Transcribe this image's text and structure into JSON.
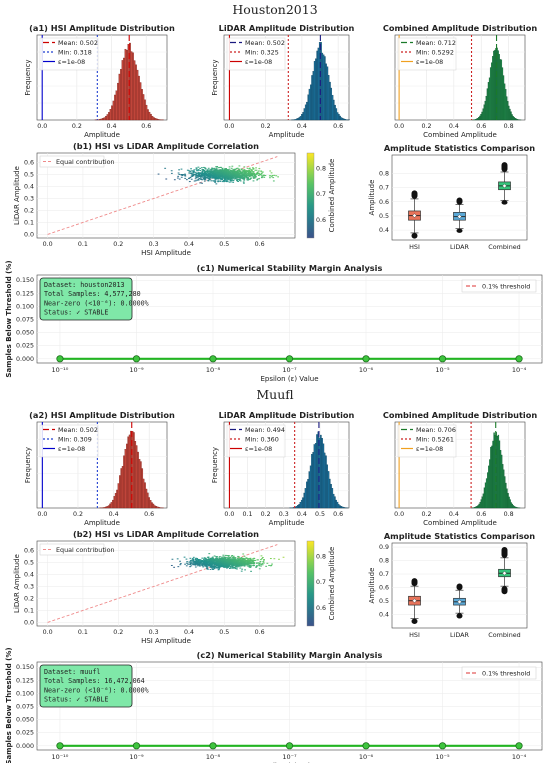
{
  "sections": [
    {
      "heading": "Houston2013",
      "hist": [
        {
          "title": "(a1) HSI Amplitude Distribution",
          "xlabel": "Amplitude",
          "ylabel": "Frequency",
          "color": "#c0453a",
          "edge": "#7a2019",
          "xlim": [
            -0.03,
            0.72
          ],
          "xticks": [
            0.0,
            0.2,
            0.4,
            0.6
          ],
          "center": 0.502,
          "spread": 0.055,
          "mean": 0.502,
          "min": 0.318,
          "eps": 1e-08,
          "legend": [
            "Mean: 0.502",
            "Min: 0.318",
            "ε=1e-08"
          ],
          "styles": [
            {
              "color": "#cc0000",
              "dash": "6,3"
            },
            {
              "color": "#1f3fd0",
              "dash": "2,2"
            },
            {
              "color": "#0000cc",
              "dash": ""
            }
          ]
        },
        {
          "title": "LiDAR Amplitude Distribution",
          "xlabel": "Amplitude",
          "ylabel": "Frequency",
          "color": "#1a6f9a",
          "edge": "#0d3e58",
          "xlim": [
            -0.03,
            0.66
          ],
          "xticks": [
            0.0,
            0.2,
            0.4,
            0.6
          ],
          "center": 0.502,
          "spread": 0.045,
          "mean": 0.502,
          "min": 0.325,
          "eps": 1e-08,
          "legend": [
            "Mean: 0.502",
            "Min: 0.325",
            "ε=1e-08"
          ],
          "styles": [
            {
              "color": "#1a1a80",
              "dash": "6,3"
            },
            {
              "color": "#cc2222",
              "dash": "2,2"
            },
            {
              "color": "#cc0000",
              "dash": ""
            }
          ]
        },
        {
          "title": "Combined Amplitude Distribution",
          "xlabel": "Combined Amplitude",
          "ylabel": "",
          "color": "#1e8a4a",
          "edge": "#0d4d28",
          "xlim": [
            -0.03,
            0.92
          ],
          "xticks": [
            0.0,
            0.2,
            0.4,
            0.6,
            0.8
          ],
          "center": 0.712,
          "spread": 0.05,
          "mean": 0.712,
          "min": 0.5292,
          "eps": 1e-08,
          "legend": [
            "Mean: 0.712",
            "Min: 0.5292",
            "ε=1e-08"
          ],
          "styles": [
            {
              "color": "#1a7a2a",
              "dash": "6,3"
            },
            {
              "color": "#cc2222",
              "dash": "2,2"
            },
            {
              "color": "#f0a020",
              "dash": ""
            }
          ]
        }
      ],
      "scatter": {
        "title": "(b1) HSI vs LiDAR Amplitude Correlation",
        "xlabel": "HSI Amplitude",
        "ylabel": "LiDAR Amplitude",
        "legend": "Equal contribution",
        "colorbar_label": "Combined Amplitude",
        "xlim": [
          -0.03,
          0.7
        ],
        "ylim": [
          -0.03,
          0.68
        ],
        "xticks": [
          0.0,
          0.1,
          0.2,
          0.3,
          0.4,
          0.5,
          0.6
        ],
        "yticks": [
          0.0,
          0.1,
          0.2,
          0.3,
          0.4,
          0.5,
          0.6
        ],
        "cx": 0.5,
        "cy": 0.5,
        "sx": 0.09,
        "sy": 0.045,
        "cbticks": [
          0.6,
          0.7,
          0.8
        ]
      },
      "box": {
        "title": "Amplitude Statistics Comparison",
        "ylabel": "Amplitude",
        "categories": [
          "HSI",
          "LiDAR",
          "Combined"
        ],
        "colors": [
          "#e8735a",
          "#5aa8d6",
          "#34c47a"
        ],
        "ylim": [
          0.33,
          0.93
        ],
        "yticks": [
          0.4,
          0.5,
          0.6,
          0.7,
          0.8
        ],
        "medians": [
          0.502,
          0.495,
          0.712
        ],
        "q1": [
          0.47,
          0.47,
          0.685
        ],
        "q3": [
          0.535,
          0.525,
          0.74
        ],
        "wlo": [
          0.38,
          0.41,
          0.61
        ],
        "whi": [
          0.62,
          0.58,
          0.81
        ],
        "fliers_lo": [
          0.34,
          0.38,
          0.58
        ],
        "fliers_hi": [
          0.68,
          0.63,
          0.88
        ]
      },
      "stability": {
        "title": "(c1) Numerical Stability Margin Analysis",
        "xlabel": "Epsilon (ε) Value",
        "ylabel": "Samples Below Threshold (%)",
        "legend": "0.1% threshold",
        "info": [
          "Dataset: houston2013",
          "Total Samples: 4,577,280",
          "Near-zero (<10⁻⁶): 0.0000%",
          "Status: ✓ STABLE"
        ],
        "x_exponents": [
          -10,
          -9,
          -8,
          -7,
          -6,
          -5,
          -4
        ],
        "x_ticklabels": [
          "10⁻¹⁰",
          "10⁻⁹",
          "10⁻⁸",
          "10⁻⁷",
          "10⁻⁶",
          "10⁻⁵",
          "10⁻⁴"
        ],
        "values": [
          0,
          0,
          0,
          0,
          0,
          0,
          0
        ],
        "yticks": [
          "0.000",
          "0.025",
          "0.050",
          "0.075",
          "0.100",
          "0.125",
          "0.150"
        ]
      }
    },
    {
      "heading": "Muufl",
      "hist": [
        {
          "title": "(a2) HSI Amplitude Distribution",
          "xlabel": "Amplitude",
          "ylabel": "Frequency",
          "color": "#c0453a",
          "edge": "#7a2019",
          "xlim": [
            -0.03,
            0.7
          ],
          "xticks": [
            0.0,
            0.2,
            0.4,
            0.6
          ],
          "center": 0.502,
          "spread": 0.05,
          "mean": 0.502,
          "min": 0.309,
          "eps": 1e-08,
          "legend": [
            "Mean: 0.502",
            "Min: 0.309",
            "ε=1e-08"
          ],
          "styles": [
            {
              "color": "#cc0000",
              "dash": "6,3"
            },
            {
              "color": "#1f3fd0",
              "dash": "2,2"
            },
            {
              "color": "#0000cc",
              "dash": ""
            }
          ]
        },
        {
          "title": "LiDAR Amplitude Distribution",
          "xlabel": "Amplitude",
          "ylabel": "Frequency",
          "color": "#1a6f9a",
          "edge": "#0d3e58",
          "xlim": [
            -0.03,
            0.66
          ],
          "xticks": [
            0.0,
            0.1,
            0.2,
            0.3,
            0.4,
            0.5,
            0.6
          ],
          "center": 0.494,
          "spread": 0.045,
          "mean": 0.494,
          "min": 0.36,
          "eps": 1e-08,
          "legend": [
            "Mean: 0.494",
            "Min: 0.360",
            "ε=1e-08"
          ],
          "styles": [
            {
              "color": "#1a1a80",
              "dash": "6,3"
            },
            {
              "color": "#cc2222",
              "dash": "2,2"
            },
            {
              "color": "#cc0000",
              "dash": ""
            }
          ]
        },
        {
          "title": "Combined Amplitude Distribution",
          "xlabel": "Combined Amplitude",
          "ylabel": "",
          "color": "#1e8a4a",
          "edge": "#0d4d28",
          "xlim": [
            -0.03,
            0.92
          ],
          "xticks": [
            0.0,
            0.2,
            0.4,
            0.6,
            0.8
          ],
          "center": 0.706,
          "spread": 0.05,
          "mean": 0.706,
          "min": 0.5261,
          "eps": 1e-08,
          "legend": [
            "Mean: 0.706",
            "Min: 0.5261",
            "ε=1e-08"
          ],
          "styles": [
            {
              "color": "#1a7a2a",
              "dash": "6,3"
            },
            {
              "color": "#cc2222",
              "dash": "2,2"
            },
            {
              "color": "#f0a020",
              "dash": ""
            }
          ]
        }
      ],
      "scatter": {
        "title": "(b2) HSI vs LiDAR Amplitude Correlation",
        "xlabel": "HSI Amplitude",
        "ylabel": "LiDAR Amplitude",
        "legend": "Equal contribution",
        "colorbar_label": "Combined Amplitude",
        "xlim": [
          -0.03,
          0.7
        ],
        "ylim": [
          -0.03,
          0.68
        ],
        "xticks": [
          0.0,
          0.1,
          0.2,
          0.3,
          0.4,
          0.5,
          0.6
        ],
        "yticks": [
          0.0,
          0.1,
          0.2,
          0.3,
          0.4,
          0.5,
          0.6
        ],
        "cx": 0.5,
        "cy": 0.5,
        "sx": 0.08,
        "sy": 0.04,
        "cbticks": [
          0.6,
          0.7,
          0.8
        ]
      },
      "box": {
        "title": "Amplitude Statistics Comparison",
        "ylabel": "Amplitude",
        "categories": [
          "HSI",
          "LiDAR",
          "Combined"
        ],
        "colors": [
          "#e8735a",
          "#5aa8d6",
          "#34c47a"
        ],
        "ylim": [
          0.3,
          0.93
        ],
        "yticks": [
          0.4,
          0.5,
          0.6,
          0.7,
          0.8,
          0.9
        ],
        "medians": [
          0.502,
          0.494,
          0.706
        ],
        "q1": [
          0.47,
          0.47,
          0.68
        ],
        "q3": [
          0.535,
          0.52,
          0.735
        ],
        "wlo": [
          0.37,
          0.41,
          0.61
        ],
        "whi": [
          0.61,
          0.58,
          0.82
        ],
        "fliers_lo": [
          0.33,
          0.37,
          0.55
        ],
        "fliers_hi": [
          0.67,
          0.63,
          0.9
        ]
      },
      "stability": {
        "title": "(c2) Numerical Stability Margin Analysis",
        "xlabel": "Epsilon (ε) Value",
        "ylabel": "Samples Below Threshold (%)",
        "legend": "0.1% threshold",
        "info": [
          "Dataset: muufl",
          "Total Samples: 16,472,064",
          "Near-zero (<10⁻⁶): 0.0000%",
          "Status: ✓ STABLE"
        ],
        "x_exponents": [
          -10,
          -9,
          -8,
          -7,
          -6,
          -5,
          -4
        ],
        "x_ticklabels": [
          "10⁻¹⁰",
          "10⁻⁹",
          "10⁻⁸",
          "10⁻⁷",
          "10⁻⁶",
          "10⁻⁵",
          "10⁻⁴"
        ],
        "values": [
          0,
          0,
          0,
          0,
          0,
          0,
          0
        ],
        "yticks": [
          "0.000",
          "0.025",
          "0.050",
          "0.075",
          "0.100",
          "0.125",
          "0.150"
        ]
      }
    }
  ],
  "chart_data": [
    {
      "type": "bar",
      "title": "(a1) HSI Amplitude Distribution",
      "xlabel": "Amplitude",
      "ylabel": "Frequency",
      "annotations": [
        "Mean: 0.502",
        "Min: 0.318",
        "ε=1e-08"
      ]
    },
    {
      "type": "bar",
      "title": "LiDAR Amplitude Distribution",
      "xlabel": "Amplitude",
      "ylabel": "Frequency",
      "annotations": [
        "Mean: 0.502",
        "Min: 0.325",
        "ε=1e-08"
      ]
    },
    {
      "type": "bar",
      "title": "Combined Amplitude Distribution",
      "xlabel": "Combined Amplitude",
      "annotations": [
        "Mean: 0.712",
        "Min: 0.5292",
        "ε=1e-08"
      ]
    },
    {
      "type": "scatter",
      "title": "(b1) HSI vs LiDAR Amplitude Correlation",
      "xlabel": "HSI Amplitude",
      "ylabel": "LiDAR Amplitude"
    },
    {
      "type": "scatter",
      "title": "Amplitude Statistics Comparison",
      "ylabel": "Amplitude",
      "categories": [
        "HSI",
        "LiDAR",
        "Combined"
      ]
    },
    {
      "type": "line",
      "title": "(c1) Numerical Stability Margin Analysis",
      "xlabel": "Epsilon (ε) Value",
      "ylabel": "Samples Below Threshold (%)",
      "x": [
        "1e-10",
        "1e-9",
        "1e-8",
        "1e-7",
        "1e-6",
        "1e-5",
        "1e-4"
      ],
      "values": [
        0,
        0,
        0,
        0,
        0,
        0,
        0
      ]
    },
    {
      "type": "bar",
      "title": "(a2) HSI Amplitude Distribution",
      "xlabel": "Amplitude",
      "ylabel": "Frequency",
      "annotations": [
        "Mean: 0.502",
        "Min: 0.309",
        "ε=1e-08"
      ]
    },
    {
      "type": "bar",
      "title": "LiDAR Amplitude Distribution",
      "xlabel": "Amplitude",
      "ylabel": "Frequency",
      "annotations": [
        "Mean: 0.494",
        "Min: 0.360",
        "ε=1e-08"
      ]
    },
    {
      "type": "bar",
      "title": "Combined Amplitude Distribution",
      "xlabel": "Combined Amplitude",
      "annotations": [
        "Mean: 0.706",
        "Min: 0.5261",
        "ε=1e-08"
      ]
    },
    {
      "type": "scatter",
      "title": "(b2) HSI vs LiDAR Amplitude Correlation",
      "xlabel": "HSI Amplitude",
      "ylabel": "LiDAR Amplitude"
    },
    {
      "type": "scatter",
      "title": "Amplitude Statistics Comparison",
      "ylabel": "Amplitude",
      "categories": [
        "HSI",
        "LiDAR",
        "Combined"
      ]
    },
    {
      "type": "line",
      "title": "(c2) Numerical Stability Margin Analysis",
      "xlabel": "Epsilon (ε) Value",
      "ylabel": "Samples Below Threshold (%)",
      "x": [
        "1e-10",
        "1e-9",
        "1e-8",
        "1e-7",
        "1e-6",
        "1e-5",
        "1e-4"
      ],
      "values": [
        0,
        0,
        0,
        0,
        0,
        0,
        0
      ]
    }
  ]
}
